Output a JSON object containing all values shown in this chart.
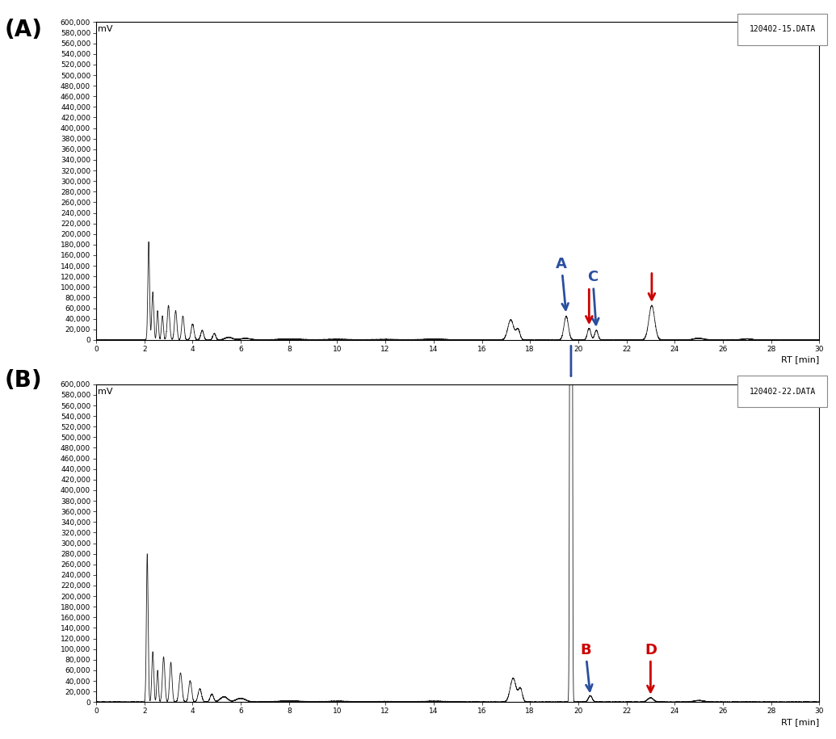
{
  "panel_A_label": "(A)",
  "panel_B_label": "(B)",
  "xlabel": "RT [min]",
  "ylabel": "mV",
  "file_A": "120402-15.DATA",
  "file_B": "120402-22.DATA",
  "xlim": [
    0,
    30
  ],
  "ylim_A": [
    0,
    600000
  ],
  "ylim_B": [
    0,
    600000
  ],
  "yticks": [
    0,
    20000,
    40000,
    60000,
    80000,
    100000,
    120000,
    140000,
    160000,
    180000,
    200000,
    220000,
    240000,
    260000,
    280000,
    300000,
    320000,
    340000,
    360000,
    380000,
    400000,
    420000,
    440000,
    460000,
    480000,
    500000,
    520000,
    540000,
    560000,
    580000,
    600000
  ],
  "xticks": [
    0,
    2,
    4,
    6,
    8,
    10,
    12,
    14,
    16,
    18,
    20,
    22,
    24,
    26,
    28,
    30
  ],
  "bg_color": "#ffffff",
  "line_color": "#1a1a1a",
  "blue_arrow_color": "#2B4F9E",
  "red_arrow_color": "#CC0000"
}
